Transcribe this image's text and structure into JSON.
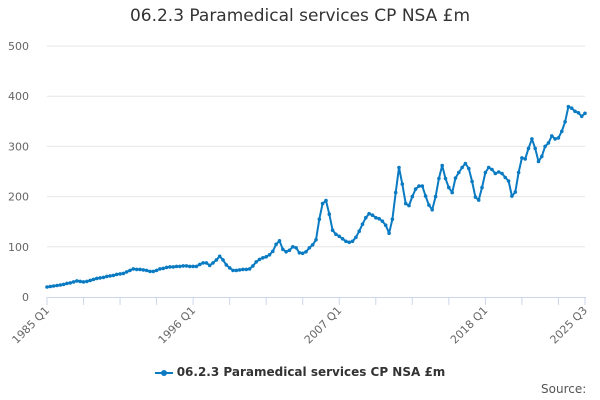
{
  "chart_data": {
    "type": "line",
    "title": "06.2.3 Paramedical services CP NSA £m",
    "xlabel": "",
    "ylabel": "",
    "x_range": [
      "1985 Q1",
      "2025 Q3"
    ],
    "x_tick_labels": [
      "1985 Q1",
      "1996 Q1",
      "2007 Q1",
      "2018 Q1",
      "2025 Q3"
    ],
    "y_tick_labels": [
      "0",
      "100",
      "200",
      "300",
      "400",
      "500"
    ],
    "ylim": [
      0,
      500
    ],
    "grid": true,
    "legend_position": "bottom",
    "series_color": "#0a7bc2",
    "series": [
      {
        "name": "06.2.3 Paramedical services CP NSA £m",
        "values": [
          20,
          21,
          22,
          23,
          24,
          25,
          27,
          28,
          30,
          32,
          31,
          30,
          31,
          33,
          35,
          37,
          38,
          39,
          41,
          42,
          43,
          45,
          46,
          47,
          50,
          53,
          56,
          55,
          55,
          54,
          53,
          51,
          51,
          53,
          56,
          57,
          59,
          60,
          60,
          61,
          61,
          62,
          62,
          61,
          61,
          61,
          65,
          68,
          68,
          63,
          68,
          74,
          81,
          74,
          64,
          58,
          53,
          53,
          54,
          55,
          55,
          56,
          62,
          70,
          75,
          78,
          80,
          84,
          91,
          105,
          112,
          95,
          90,
          93,
          100,
          98,
          88,
          87,
          90,
          98,
          104,
          114,
          155,
          186,
          192,
          165,
          133,
          125,
          121,
          116,
          111,
          109,
          111,
          119,
          131,
          145,
          158,
          166,
          163,
          158,
          156,
          151,
          143,
          127,
          155,
          208,
          258,
          225,
          186,
          182,
          200,
          215,
          221,
          221,
          201,
          183,
          174,
          200,
          236,
          262,
          236,
          218,
          208,
          237,
          248,
          258,
          266,
          256,
          230,
          199,
          193,
          218,
          248,
          258,
          254,
          246,
          249,
          246,
          238,
          231,
          201,
          209,
          248,
          277,
          275,
          296,
          315,
          296,
          270,
          280,
          300,
          307,
          321,
          315,
          317,
          330,
          349,
          379,
          376,
          370,
          367,
          360,
          366
        ]
      }
    ]
  },
  "source_label": "Source:"
}
